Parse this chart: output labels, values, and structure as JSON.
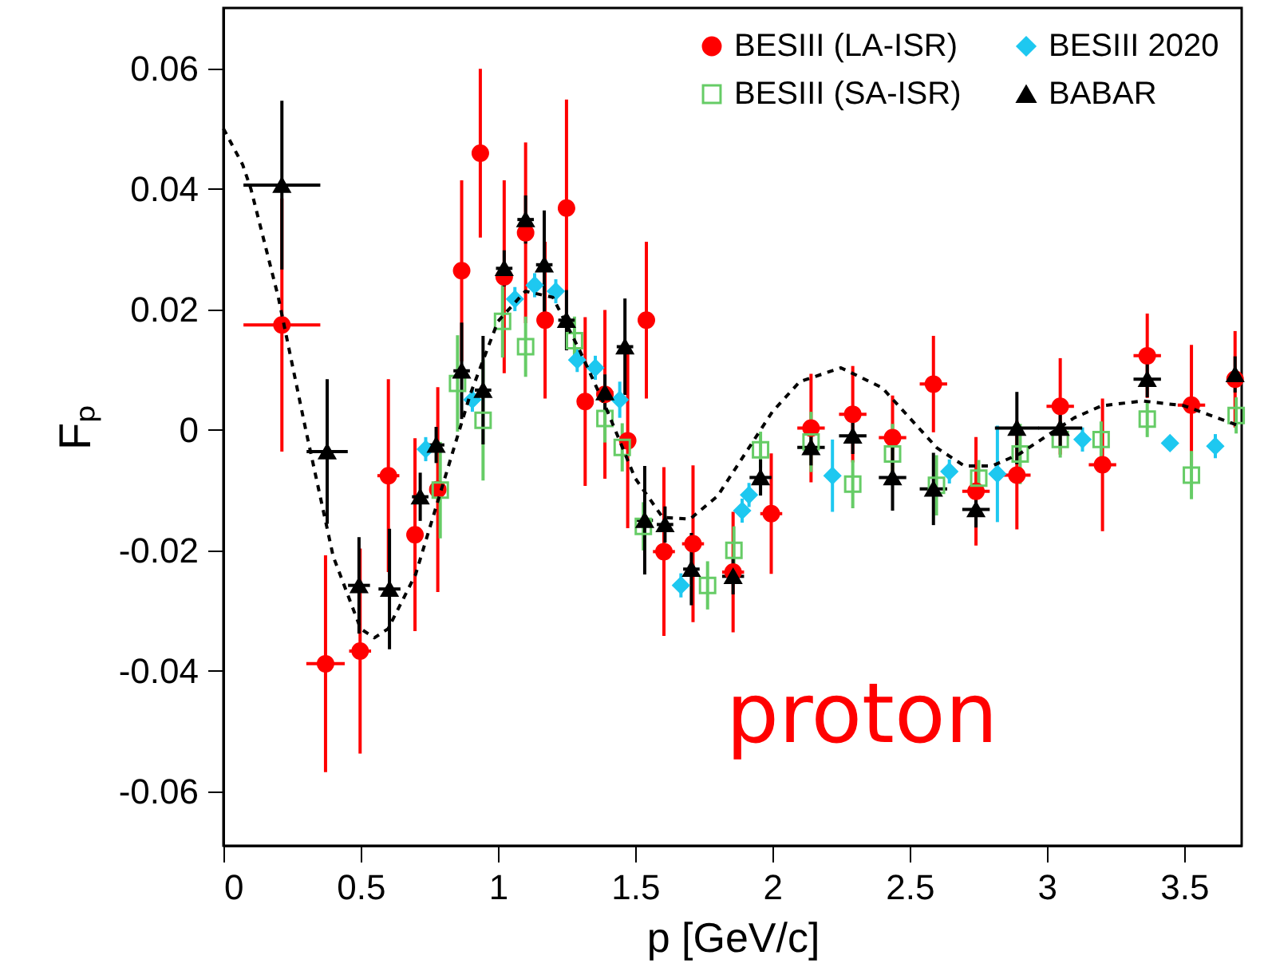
{
  "chart_data": {
    "type": "scatter",
    "xlabel": "p [GeV/c]",
    "ylabel": "Fₚ",
    "xlim": [
      0,
      3.71
    ],
    "ylim": [
      -0.069,
      0.07
    ],
    "xticks": [
      0,
      0.5,
      1,
      1.5,
      2,
      2.5,
      3,
      3.5
    ],
    "yticks": [
      -0.06,
      -0.04,
      -0.02,
      0,
      0.02,
      0.04,
      0.06
    ],
    "grid": false,
    "legend": "top right",
    "annotations": [
      "proton"
    ],
    "series": [
      {
        "name": "BESIII (LA-ISR)",
        "color": "#ff0000",
        "marker": "circle",
        "x": [
          0.213,
          0.372,
          0.498,
          0.601,
          0.698,
          0.781,
          0.868,
          0.936,
          1.023,
          1.101,
          1.172,
          1.25,
          1.318,
          1.39,
          1.473,
          1.541,
          1.605,
          1.711,
          1.857,
          1.996,
          2.141,
          2.293,
          2.438,
          2.587,
          2.742,
          2.891,
          3.049,
          3.203,
          3.366,
          3.527,
          3.686
        ],
        "values": [
          0.0174,
          -0.0388,
          -0.0367,
          -0.0076,
          -0.0174,
          -0.0099,
          0.0264,
          0.0459,
          0.0254,
          0.0327,
          0.0182,
          0.0368,
          0.0047,
          0.0059,
          -0.0018,
          0.0182,
          -0.0202,
          -0.0189,
          -0.0236,
          -0.0139,
          0.0003,
          0.0026,
          -0.0013,
          0.0076,
          -0.0102,
          -0.0075,
          0.0039,
          -0.0058,
          0.0123,
          0.0041,
          0.0084
        ],
        "errors": [
          0.021,
          0.018,
          0.017,
          0.016,
          0.016,
          0.017,
          0.015,
          0.014,
          0.016,
          0.015,
          0.013,
          0.018,
          0.014,
          0.014,
          0.0145,
          0.013,
          0.014,
          0.013,
          0.01,
          0.01,
          0.009,
          0.008,
          0.007,
          0.008,
          0.009,
          0.009,
          0.008,
          0.011,
          0.007,
          0.01,
          0.008
        ],
        "xerrors": [
          0.14,
          0.07,
          0.04,
          0.04,
          0.03,
          0.03,
          0.03,
          0.03,
          0.03,
          0.03,
          0.03,
          0.03,
          0.03,
          0.03,
          0.03,
          0.03,
          0.04,
          0.04,
          0.04,
          0.04,
          0.05,
          0.05,
          0.05,
          0.05,
          0.05,
          0.05,
          0.05,
          0.05,
          0.05,
          0.05,
          0.02
        ]
      },
      {
        "name": "BESIII 2020",
        "color": "#1ec8f0",
        "marker": "diamond",
        "x": [
          0.737,
          0.907,
          1.062,
          1.134,
          1.211,
          1.289,
          1.355,
          1.444,
          1.667,
          1.89,
          1.915,
          2.219,
          2.645,
          2.82,
          3.13,
          3.449,
          3.614
        ],
        "values": [
          -0.0032,
          0.005,
          0.0217,
          0.024,
          0.023,
          0.0116,
          0.0103,
          0.005,
          -0.0258,
          -0.0134,
          -0.0108,
          -0.0076,
          -0.0069,
          -0.0073,
          -0.0016,
          -0.0022,
          -0.0027
        ],
        "errors": [
          0.002,
          0.002,
          0.002,
          0.002,
          0.002,
          0.002,
          0.002,
          0.003,
          0.002,
          0.002,
          0.002,
          0.006,
          0.002,
          0.008,
          0.002,
          0.001,
          0.002
        ]
      },
      {
        "name": "BESIII (SA-ISR)",
        "color": "#66cc66",
        "marker": "square",
        "x": [
          0.79,
          0.853,
          0.946,
          1.017,
          1.101,
          1.279,
          1.39,
          1.453,
          1.53,
          1.764,
          1.86,
          1.957,
          2.141,
          2.293,
          2.438,
          2.598,
          2.752,
          2.903,
          3.049,
          3.198,
          3.366,
          3.527,
          3.69
        ],
        "values": [
          -0.01,
          0.0077,
          0.0016,
          0.018,
          0.0138,
          0.0148,
          0.0019,
          -0.0029,
          -0.016,
          -0.0258,
          -0.02,
          -0.0033,
          -0.002,
          -0.009,
          -0.004,
          -0.0092,
          -0.008,
          -0.004,
          -0.0016,
          -0.0016,
          0.0018,
          -0.0075,
          0.0024
        ],
        "errors": [
          0.008,
          0.008,
          0.01,
          0.006,
          0.005,
          0.004,
          0.004,
          0.004,
          0.004,
          0.004,
          0.004,
          0.003,
          0.005,
          0.004,
          0.005,
          0.005,
          0.003,
          0.005,
          0.003,
          0.003,
          0.003,
          0.004,
          0.003
        ]
      },
      {
        "name": "BABAR",
        "color": "#000000",
        "marker": "triangle",
        "x": [
          0.213,
          0.378,
          0.494,
          0.605,
          0.717,
          0.775,
          0.868,
          0.946,
          1.023,
          1.101,
          1.169,
          1.25,
          1.39,
          1.463,
          1.535,
          1.609,
          1.705,
          1.857,
          1.957,
          2.141,
          2.293,
          2.438,
          2.587,
          2.742,
          2.891,
          3.049,
          3.366,
          3.686
        ],
        "values": [
          0.0406,
          -0.0036,
          -0.0258,
          -0.0264,
          -0.0111,
          -0.0025,
          0.0098,
          0.0066,
          0.0268,
          0.0349,
          0.0274,
          0.0182,
          0.0062,
          0.0138,
          -0.015,
          -0.0157,
          -0.0231,
          -0.0243,
          -0.0079,
          -0.0029,
          -0.001,
          -0.0079,
          -0.0098,
          -0.0132,
          0.0003,
          0.0003,
          0.0084,
          0.0092
        ],
        "errors": [
          0.014,
          0.012,
          0.008,
          0.01,
          0.004,
          0.003,
          0.008,
          0.009,
          0.003,
          0.004,
          0.009,
          0.005,
          0.003,
          0.008,
          0.009,
          0.003,
          0.006,
          0.003,
          0.003,
          0.003,
          0.003,
          0.0055,
          0.006,
          0.003,
          0.006,
          0.003,
          0.003,
          0.003
        ],
        "xerrors": [
          0.14,
          0.075,
          0.04,
          0.04,
          0.03,
          0.03,
          0.03,
          0.03,
          0.03,
          0.03,
          0.03,
          0.03,
          0.03,
          0.03,
          0.03,
          0.03,
          0.03,
          0.04,
          0.04,
          0.05,
          0.05,
          0.05,
          0.05,
          0.05,
          0.08,
          0.08,
          0.05,
          0.02
        ]
      },
      {
        "type": "line",
        "color": "#000000",
        "line_style": "dashed",
        "x": [
          0,
          0.07,
          0.1,
          0.2,
          0.3,
          0.4,
          0.5,
          0.55,
          0.6,
          0.7,
          0.8,
          0.9,
          1.0,
          1.1,
          1.2,
          1.3,
          1.4,
          1.5,
          1.6,
          1.7,
          1.8,
          1.9,
          2.0,
          2.1,
          2.25,
          2.4,
          2.5,
          2.6,
          2.7,
          2.8,
          2.9,
          3.0,
          3.1,
          3.2,
          3.35,
          3.5,
          3.71
        ],
        "values": [
          0.05,
          0.044,
          0.04,
          0.022,
          0.0,
          -0.021,
          -0.033,
          -0.0345,
          -0.033,
          -0.024,
          -0.009,
          0.006,
          0.018,
          0.023,
          0.022,
          0.013,
          0.003,
          -0.008,
          -0.0145,
          -0.0148,
          -0.011,
          -0.004,
          0.003,
          0.008,
          0.0103,
          0.007,
          0.002,
          -0.003,
          -0.006,
          -0.006,
          -0.004,
          -0.001,
          0.002,
          0.004,
          0.0048,
          0.004,
          0.0005
        ]
      }
    ]
  }
}
